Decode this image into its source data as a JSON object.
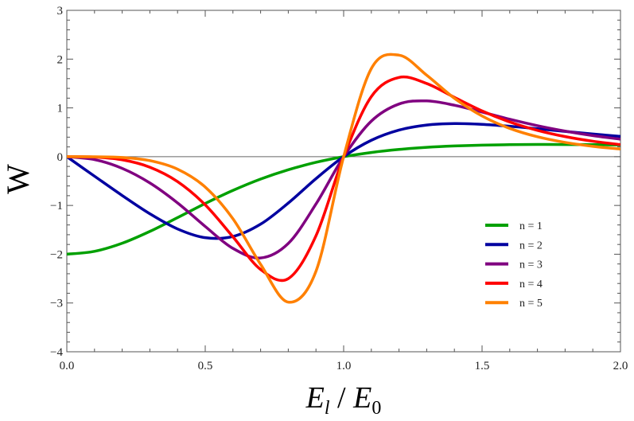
{
  "chart_data": {
    "type": "line",
    "title": "",
    "xlabel": "E_l / E_0",
    "ylabel": "W",
    "xlim": [
      0,
      2
    ],
    "ylim": [
      -4,
      3
    ],
    "grid": false,
    "legend_position": "lower right (inside)",
    "x_ticks": [
      "0.0",
      "0.5",
      "1.0",
      "1.5",
      "2.0"
    ],
    "y_ticks": [
      "3",
      "2",
      "1",
      "0",
      "−1",
      "−2",
      "−3",
      "−4"
    ],
    "x": [
      0,
      0.1,
      0.2,
      0.3,
      0.4,
      0.5,
      0.6,
      0.7,
      0.8,
      0.9,
      1.0,
      1.1,
      1.2,
      1.3,
      1.4,
      1.5,
      1.6,
      1.7,
      1.8,
      1.9,
      2.0
    ],
    "series": [
      {
        "name": "n = 1",
        "color": "#00a000",
        "values": [
          -2.0,
          -1.941,
          -1.775,
          -1.532,
          -1.249,
          -0.96,
          -0.692,
          -0.459,
          -0.268,
          -0.116,
          0.0,
          0.086,
          0.148,
          0.191,
          0.219,
          0.237,
          0.246,
          0.25,
          0.249,
          0.246,
          0.24
        ]
      },
      {
        "name": "n = 2",
        "color": "#0000a0",
        "values": [
          0.0,
          -0.4,
          -0.796,
          -1.171,
          -1.482,
          -1.661,
          -1.637,
          -1.384,
          -0.951,
          -0.451,
          0.0,
          0.336,
          0.545,
          0.649,
          0.679,
          0.663,
          0.623,
          0.572,
          0.517,
          0.464,
          0.415
        ]
      },
      {
        "name": "n = 3",
        "color": "#800080",
        "values": [
          0.0,
          -0.06,
          -0.24,
          -0.539,
          -0.948,
          -1.431,
          -1.88,
          -2.077,
          -1.779,
          -0.971,
          0.0,
          0.729,
          1.08,
          1.143,
          1.055,
          0.914,
          0.767,
          0.635,
          0.524,
          0.432,
          0.358
        ]
      },
      {
        "name": "n = 4",
        "color": "#ff0000",
        "values": [
          0.0,
          -0.008,
          -0.064,
          -0.216,
          -0.511,
          -0.988,
          -1.643,
          -2.312,
          -2.5,
          -1.623,
          0.0,
          1.232,
          1.624,
          1.5,
          1.216,
          0.938,
          0.712,
          0.54,
          0.412,
          0.317,
          0.247
        ]
      },
      {
        "name": "n = 5",
        "color": "#ff8000",
        "values": [
          0.0,
          -0.002,
          -0.016,
          -0.081,
          -0.256,
          -0.623,
          -1.273,
          -2.207,
          -2.982,
          -2.349,
          0.0,
          1.807,
          2.081,
          1.67,
          1.198,
          0.834,
          0.58,
          0.408,
          0.292,
          0.212,
          0.156
        ]
      }
    ],
    "extrema": {
      "n = 1": {
        "min": [
          0.0,
          -2.0
        ],
        "max": [
          1.73,
          0.25
        ]
      },
      "n = 2": {
        "min": [
          0.55,
          -1.68
        ],
        "max": [
          1.39,
          0.68
        ]
      },
      "n = 3": {
        "min": [
          0.71,
          -2.08
        ],
        "max": [
          1.28,
          1.15
        ]
      },
      "n = 4": {
        "min": [
          0.78,
          -2.54
        ],
        "max": [
          1.21,
          1.64
        ]
      },
      "n = 5": {
        "min": [
          0.82,
          -3.01
        ],
        "max": [
          1.17,
          2.12
        ]
      }
    }
  },
  "axes": {
    "xlabel_main": "E",
    "xlabel_sub1": "l",
    "xlabel_sep": " / ",
    "xlabel_sub2": "0",
    "ylabel": "W"
  }
}
